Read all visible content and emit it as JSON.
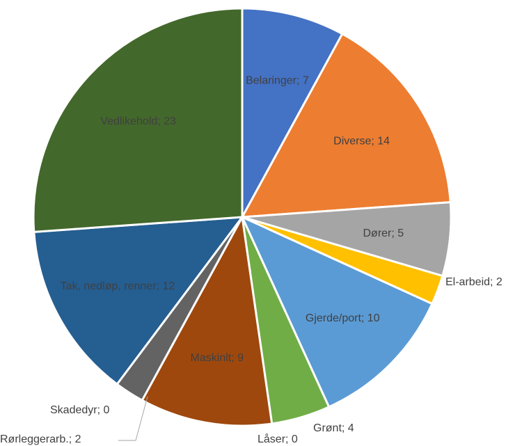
{
  "chart_data": {
    "type": "pie",
    "title": "",
    "slices": [
      {
        "label": "Belaringer",
        "value": 7,
        "color": "#4472c4"
      },
      {
        "label": "Diverse",
        "value": 14,
        "color": "#ed7d31"
      },
      {
        "label": "Dører",
        "value": 5,
        "color": "#a5a5a5"
      },
      {
        "label": "El-arbeid",
        "value": 2,
        "color": "#ffc000"
      },
      {
        "label": "Gjerde/port",
        "value": 10,
        "color": "#5b9bd5"
      },
      {
        "label": "Grønt",
        "value": 4,
        "color": "#70ad47"
      },
      {
        "label": "Låser",
        "value": 0,
        "color": "#264478"
      },
      {
        "label": "Maskinlt",
        "value": 9,
        "color": "#9e480e"
      },
      {
        "label": "Rørleggerarb.",
        "value": 2,
        "color": "#636363"
      },
      {
        "label": "Skadedyr",
        "value": 0,
        "color": "#997300"
      },
      {
        "label": "Tak, nedløp, renner",
        "value": 12,
        "color": "#255e91"
      },
      {
        "label": "Vedlikehold",
        "value": 23,
        "color": "#43682b"
      }
    ],
    "label_separator": "; ",
    "legend": "none"
  }
}
